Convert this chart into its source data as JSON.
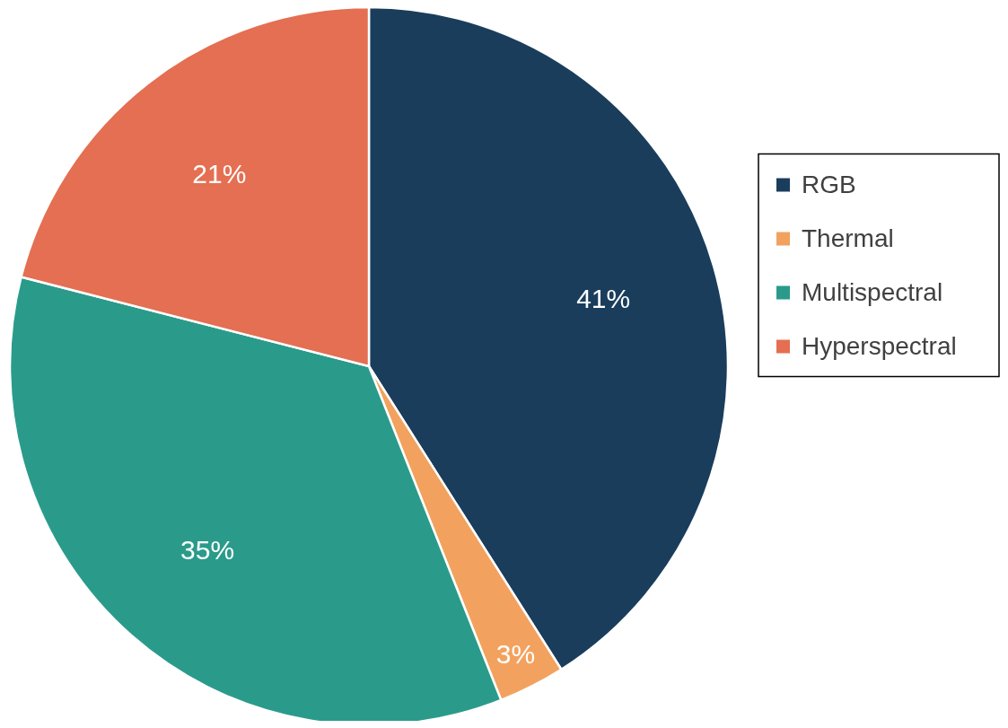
{
  "chart_data": {
    "type": "pie",
    "categories": [
      "RGB",
      "Thermal",
      "Multispectral",
      "Hyperspectral"
    ],
    "values": [
      41,
      3,
      35,
      21
    ],
    "colors": [
      "#1a3d5c",
      "#f2a25e",
      "#2a9b8b",
      "#e46f52"
    ],
    "value_labels": [
      "41%",
      "3%",
      "35%",
      "21%"
    ],
    "legend": "right"
  }
}
